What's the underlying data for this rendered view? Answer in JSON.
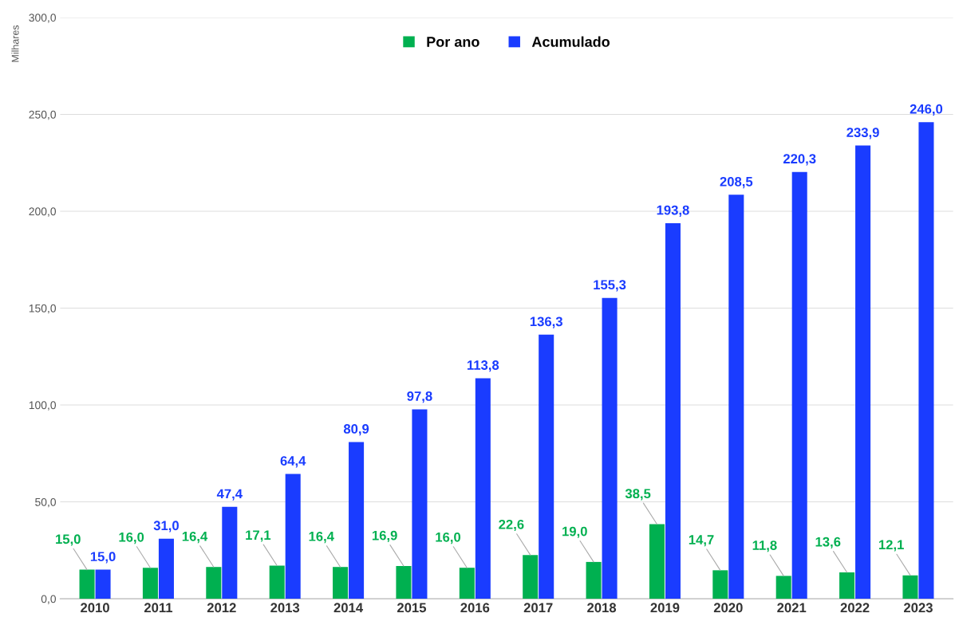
{
  "chart_data": {
    "type": "bar",
    "ylabel": "Milhares",
    "categories": [
      "2010",
      "2011",
      "2012",
      "2013",
      "2014",
      "2015",
      "2016",
      "2017",
      "2018",
      "2019",
      "2020",
      "2021",
      "2022",
      "2023"
    ],
    "series": [
      {
        "name": "Por ano",
        "color": "#00b050",
        "values": [
          15.0,
          16.0,
          16.4,
          17.1,
          16.4,
          16.9,
          16.0,
          22.6,
          19.0,
          38.5,
          14.7,
          11.8,
          13.6,
          12.1
        ],
        "value_labels": [
          "15,0",
          "16,0",
          "16,4",
          "17,1",
          "16,4",
          "16,9",
          "16,0",
          "22,6",
          "19,0",
          "38,5",
          "14,7",
          "11,8",
          "13,6",
          "12,1"
        ]
      },
      {
        "name": "Acumulado",
        "color": "#1a3cff",
        "values": [
          15.0,
          31.0,
          47.4,
          64.4,
          80.9,
          97.8,
          113.8,
          136.3,
          155.3,
          193.8,
          208.5,
          220.3,
          233.9,
          246.0
        ],
        "value_labels": [
          "15,0",
          "31,0",
          "47,4",
          "64,4",
          "80,9",
          "97,8",
          "113,8",
          "136,3",
          "155,3",
          "193,8",
          "208,5",
          "220,3",
          "233,9",
          "246,0"
        ]
      }
    ],
    "ylim": [
      0,
      300
    ],
    "yticks": [
      {
        "value": 0,
        "label": "0,0"
      },
      {
        "value": 50,
        "label": "50,0"
      },
      {
        "value": 100,
        "label": "100,0"
      },
      {
        "value": 150,
        "label": "150,0"
      },
      {
        "value": 200,
        "label": "200,0"
      },
      {
        "value": 250,
        "label": "250,0"
      },
      {
        "value": 300,
        "label": "300,0"
      }
    ],
    "grid": "y",
    "legend": "top"
  }
}
